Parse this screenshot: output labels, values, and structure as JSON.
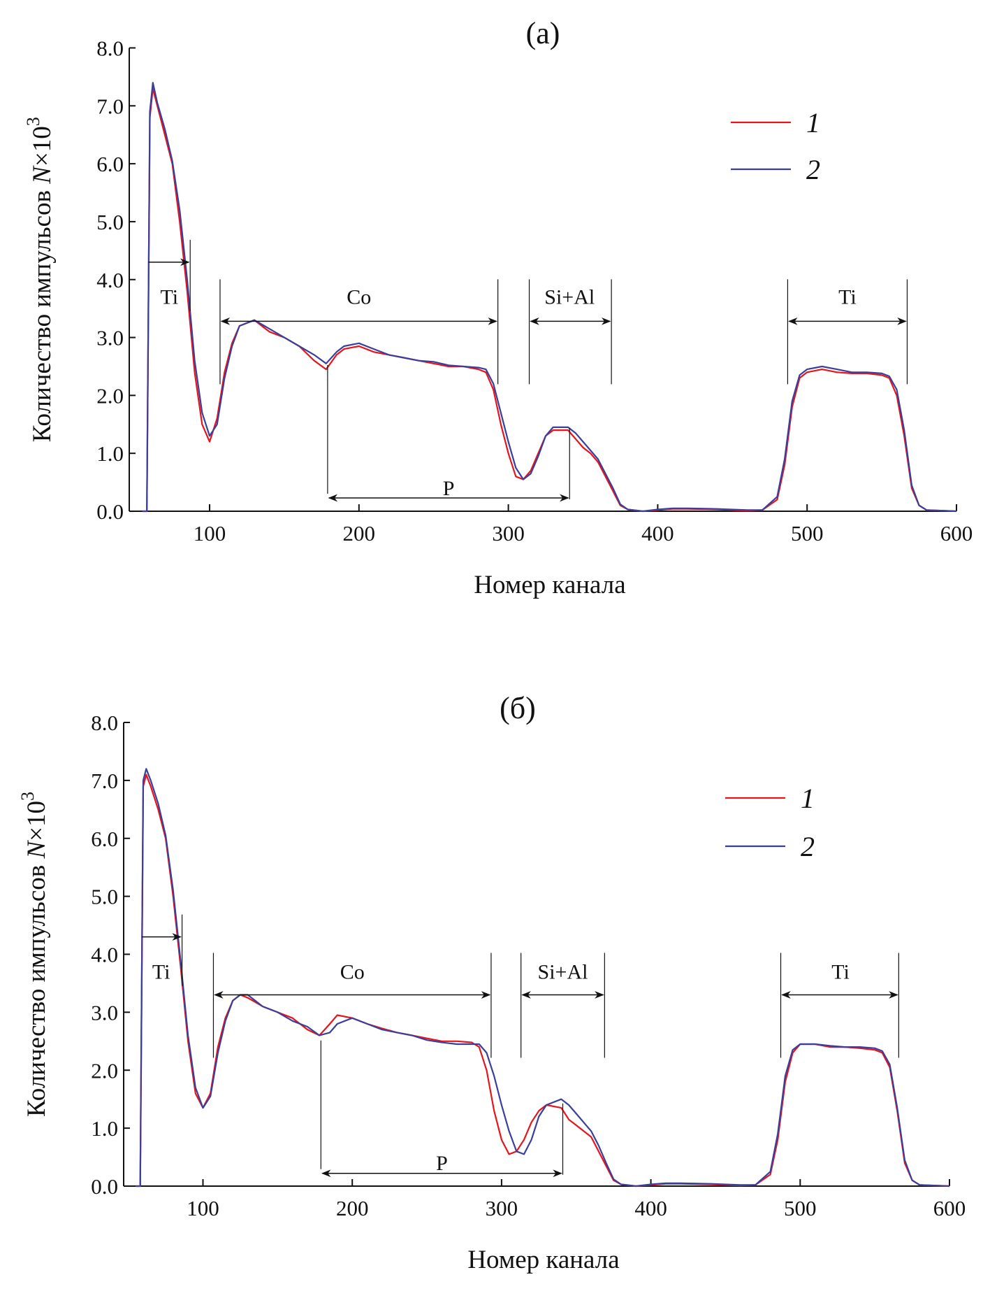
{
  "chart_data": [
    {
      "type": "line",
      "title": "(a)",
      "xlabel": "Номер канала",
      "ylabel_text": "Количество импульсов ",
      "ylabel_var": "N",
      "ylabel_times": "×10",
      "ylabel_exp": "3",
      "xlim": [
        46,
        600
      ],
      "ylim": [
        0,
        8
      ],
      "xticks": [
        100,
        200,
        300,
        400,
        500,
        600
      ],
      "xtick_labels": [
        "100",
        "200",
        "300",
        "400",
        "500",
        "600"
      ],
      "yticks": [
        0,
        1,
        2,
        3,
        4,
        5,
        6,
        7,
        8
      ],
      "ytick_labels": [
        "0.0",
        "1.0",
        "2.0",
        "3.0",
        "4.0",
        "5.0",
        "6.0",
        "7.0",
        "8.0"
      ],
      "legend": {
        "placement": "top-right",
        "entries": [
          "1",
          "2"
        ]
      },
      "colors": {
        "1": "#e8141c",
        "2": "#3a3f9c"
      },
      "x": [
        55,
        58,
        60,
        62,
        65,
        70,
        75,
        80,
        85,
        90,
        95,
        100,
        105,
        110,
        115,
        120,
        125,
        130,
        140,
        150,
        160,
        170,
        178,
        185,
        190,
        200,
        210,
        220,
        230,
        240,
        250,
        260,
        270,
        280,
        285,
        290,
        295,
        300,
        305,
        310,
        315,
        320,
        325,
        330,
        340,
        345,
        350,
        355,
        360,
        365,
        370,
        375,
        380,
        390,
        400,
        410,
        420,
        440,
        460,
        470,
        480,
        485,
        490,
        495,
        500,
        510,
        520,
        530,
        540,
        550,
        555,
        560,
        565,
        570,
        575,
        580,
        600
      ],
      "series": [
        {
          "name": "1",
          "values": [
            0,
            0,
            6.8,
            7.3,
            7.0,
            6.5,
            6.0,
            5.0,
            3.8,
            2.4,
            1.5,
            1.2,
            1.6,
            2.4,
            2.9,
            3.2,
            3.25,
            3.3,
            3.1,
            3.0,
            2.85,
            2.6,
            2.45,
            2.7,
            2.8,
            2.85,
            2.75,
            2.7,
            2.65,
            2.6,
            2.55,
            2.5,
            2.5,
            2.45,
            2.4,
            2.1,
            1.5,
            1.0,
            0.6,
            0.55,
            0.7,
            1.0,
            1.3,
            1.4,
            1.4,
            1.25,
            1.1,
            1.0,
            0.85,
            0.6,
            0.35,
            0.1,
            0.03,
            0.0,
            0.02,
            0.04,
            0.04,
            0.03,
            0.01,
            0.02,
            0.2,
            0.8,
            1.8,
            2.3,
            2.4,
            2.45,
            2.4,
            2.38,
            2.38,
            2.35,
            2.3,
            2.0,
            1.3,
            0.4,
            0.1,
            0.02,
            0.0
          ]
        },
        {
          "name": "2",
          "values": [
            0,
            0,
            6.9,
            7.4,
            7.05,
            6.6,
            6.05,
            5.2,
            4.0,
            2.6,
            1.7,
            1.3,
            1.5,
            2.3,
            2.85,
            3.2,
            3.25,
            3.3,
            3.15,
            3.0,
            2.85,
            2.7,
            2.55,
            2.75,
            2.85,
            2.9,
            2.8,
            2.7,
            2.65,
            2.6,
            2.58,
            2.52,
            2.5,
            2.48,
            2.45,
            2.2,
            1.7,
            1.2,
            0.75,
            0.55,
            0.65,
            0.95,
            1.3,
            1.45,
            1.45,
            1.35,
            1.2,
            1.05,
            0.9,
            0.65,
            0.4,
            0.12,
            0.03,
            0.0,
            0.03,
            0.05,
            0.05,
            0.04,
            0.02,
            0.02,
            0.25,
            0.9,
            1.9,
            2.35,
            2.45,
            2.5,
            2.45,
            2.4,
            2.4,
            2.38,
            2.33,
            2.1,
            1.4,
            0.45,
            0.1,
            0.02,
            0.0
          ]
        }
      ],
      "annotations": [
        {
          "label": "Ti",
          "from": 59,
          "to": 87,
          "y": 4.3,
          "label_y": 3.7,
          "label_x": 73
        },
        {
          "label": "Co",
          "from": 107,
          "to": 293,
          "y": 3.28,
          "label_y": 3.7,
          "label_x": 200
        },
        {
          "label": "Si+Al",
          "from": 314,
          "to": 369,
          "y": 3.28,
          "label_y": 3.7,
          "label_x": 341
        },
        {
          "label": "Ti",
          "from": 487,
          "to": 567,
          "y": 3.28,
          "label_y": 3.7,
          "label_x": 527
        },
        {
          "label": "P",
          "from": 179,
          "to": 341,
          "y": 0.23,
          "label_y": 0.4,
          "label_x": 260
        }
      ]
    },
    {
      "type": "line",
      "title": "(б)",
      "xlabel": "Номер канала",
      "ylabel_text": "Количество импульсов ",
      "ylabel_var": "N",
      "ylabel_times": "×10",
      "ylabel_exp": "3",
      "xlim": [
        46,
        600
      ],
      "ylim": [
        0,
        8
      ],
      "xticks": [
        100,
        200,
        300,
        400,
        500,
        600
      ],
      "xtick_labels": [
        "100",
        "200",
        "300",
        "400",
        "500",
        "600"
      ],
      "yticks": [
        0,
        1,
        2,
        3,
        4,
        5,
        6,
        7,
        8
      ],
      "ytick_labels": [
        "0.0",
        "1.0",
        "2.0",
        "3.0",
        "4.0",
        "5.0",
        "6.0",
        "7.0",
        "8.0"
      ],
      "legend": {
        "placement": "top-right",
        "entries": [
          "1",
          "2"
        ]
      },
      "colors": {
        "1": "#e8141c",
        "2": "#3a3f9c"
      },
      "x": [
        55,
        58,
        60,
        62,
        65,
        70,
        75,
        80,
        85,
        90,
        95,
        100,
        105,
        110,
        115,
        120,
        125,
        130,
        140,
        150,
        160,
        170,
        178,
        185,
        190,
        200,
        210,
        220,
        230,
        240,
        250,
        260,
        270,
        280,
        285,
        290,
        295,
        300,
        305,
        310,
        315,
        320,
        325,
        330,
        340,
        345,
        350,
        355,
        360,
        365,
        370,
        375,
        380,
        390,
        400,
        410,
        420,
        440,
        460,
        470,
        480,
        485,
        490,
        495,
        500,
        510,
        520,
        530,
        540,
        550,
        555,
        560,
        565,
        570,
        575,
        580,
        600
      ],
      "series": [
        {
          "name": "1",
          "values": [
            0,
            0,
            6.9,
            7.1,
            6.9,
            6.5,
            6.0,
            5.0,
            3.8,
            2.5,
            1.6,
            1.35,
            1.6,
            2.4,
            2.9,
            3.2,
            3.3,
            3.25,
            3.1,
            3.0,
            2.9,
            2.7,
            2.6,
            2.8,
            2.95,
            2.9,
            2.8,
            2.72,
            2.65,
            2.6,
            2.55,
            2.5,
            2.5,
            2.48,
            2.4,
            2.0,
            1.3,
            0.8,
            0.55,
            0.6,
            0.8,
            1.1,
            1.3,
            1.4,
            1.35,
            1.15,
            1.05,
            0.95,
            0.85,
            0.6,
            0.35,
            0.1,
            0.03,
            0.0,
            0.02,
            0.04,
            0.04,
            0.03,
            0.01,
            0.02,
            0.2,
            0.8,
            1.8,
            2.3,
            2.45,
            2.45,
            2.4,
            2.4,
            2.38,
            2.35,
            2.3,
            2.05,
            1.3,
            0.4,
            0.1,
            0.02,
            0.0
          ]
        },
        {
          "name": "2",
          "values": [
            0,
            0,
            7.0,
            7.2,
            7.0,
            6.6,
            6.05,
            5.1,
            3.9,
            2.6,
            1.7,
            1.35,
            1.55,
            2.3,
            2.85,
            3.2,
            3.3,
            3.3,
            3.1,
            3.0,
            2.85,
            2.75,
            2.6,
            2.65,
            2.8,
            2.9,
            2.8,
            2.7,
            2.65,
            2.6,
            2.52,
            2.48,
            2.45,
            2.45,
            2.45,
            2.3,
            1.9,
            1.4,
            0.95,
            0.6,
            0.55,
            0.8,
            1.2,
            1.4,
            1.5,
            1.4,
            1.25,
            1.1,
            0.95,
            0.7,
            0.4,
            0.12,
            0.03,
            0.0,
            0.03,
            0.05,
            0.05,
            0.04,
            0.02,
            0.02,
            0.25,
            0.9,
            1.9,
            2.35,
            2.45,
            2.45,
            2.42,
            2.4,
            2.4,
            2.38,
            2.33,
            2.1,
            1.35,
            0.45,
            0.1,
            0.02,
            0.0
          ]
        }
      ],
      "annotations": [
        {
          "label": "Ti",
          "from": 59,
          "to": 86,
          "y": 4.3,
          "label_y": 3.7,
          "label_x": 72
        },
        {
          "label": "Co",
          "from": 107,
          "to": 293,
          "y": 3.3,
          "label_y": 3.7,
          "label_x": 200
        },
        {
          "label": "Si+Al",
          "from": 313,
          "to": 369,
          "y": 3.3,
          "label_y": 3.7,
          "label_x": 341
        },
        {
          "label": "Ti",
          "from": 487,
          "to": 566,
          "y": 3.3,
          "label_y": 3.7,
          "label_x": 527
        },
        {
          "label": "P",
          "from": 179,
          "to": 341,
          "y": 0.22,
          "label_y": 0.4,
          "label_x": 260
        }
      ]
    }
  ]
}
